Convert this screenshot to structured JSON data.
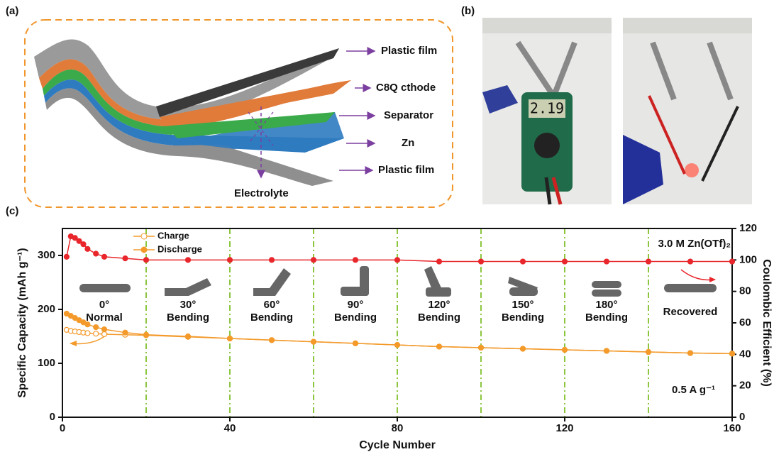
{
  "panel_a": {
    "label": "(a)",
    "layers": [
      "Plastic film",
      "C8Q cthode",
      "Separator",
      "Zn",
      "Plastic film"
    ],
    "electrolyte": "Electrolyte"
  },
  "panel_b": {
    "label": "(b)",
    "display": "2.19"
  },
  "chart_data": {
    "type": "scatter",
    "panel_label": "(c)",
    "x_label": "Cycle Number",
    "y_label": "Specific Capacity (mAh g⁻¹)",
    "y2_label": "Coulombic Efficient (%)",
    "electrolyte": "3.0 M Zn(OTf)₂",
    "current": "0.5 A g⁻¹",
    "xlim": [
      0,
      160
    ],
    "xticks": [
      0,
      40,
      80,
      120,
      160
    ],
    "ylim": [
      0,
      350
    ],
    "yticks": [
      0,
      100,
      200,
      300
    ],
    "y2lim": [
      0,
      120
    ],
    "y2ticks": [
      0,
      20,
      40,
      60,
      80,
      100,
      120
    ],
    "dividers": [
      20,
      40,
      60,
      80,
      100,
      120,
      140
    ],
    "divider_color": "#8cc63f",
    "segments": [
      [
        "0°",
        "Normal"
      ],
      [
        "30°",
        "Bending"
      ],
      [
        "60°",
        "Bending"
      ],
      [
        "90°",
        "Bending"
      ],
      [
        "120°",
        "Bending"
      ],
      [
        "150°",
        "Bending"
      ],
      [
        "180°",
        "Bending"
      ],
      [
        "Recovered"
      ]
    ],
    "x": [
      1,
      2,
      3,
      4,
      5,
      6,
      8,
      10,
      15,
      20,
      30,
      40,
      50,
      60,
      70,
      80,
      90,
      100,
      110,
      120,
      130,
      140,
      150,
      160
    ],
    "series": [
      {
        "name": "Charge",
        "color": "#f39a2b",
        "filled": false,
        "values": [
          162,
          160,
          159,
          158,
          157,
          156,
          155,
          154,
          153,
          152,
          149,
          146,
          143,
          140,
          137,
          134,
          131,
          129,
          127,
          125,
          123,
          121,
          119,
          118
        ]
      },
      {
        "name": "Discharge",
        "color": "#f39a2b",
        "filled": true,
        "values": [
          192,
          188,
          184,
          180,
          176,
          172,
          167,
          163,
          157,
          153,
          150,
          146,
          143,
          140,
          137,
          134,
          131,
          129,
          127,
          125,
          123,
          121,
          119,
          118
        ]
      },
      {
        "color": "#e8262b",
        "filled": true,
        "axis": "y2",
        "values": [
          102,
          115,
          114,
          112,
          110,
          107,
          104,
          102,
          101,
          100,
          100,
          100,
          100,
          100,
          100,
          100,
          99,
          99,
          99,
          99,
          99,
          99,
          99,
          99
        ]
      }
    ]
  }
}
